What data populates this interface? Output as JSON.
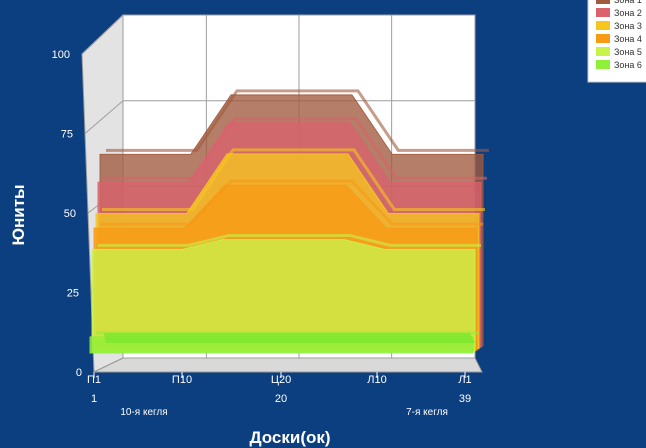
{
  "chart_data": {
    "type": "area",
    "title": "",
    "xlabel": "Доски(ок)",
    "ylabel": "Юниты",
    "ylim": [
      0,
      100
    ],
    "yticks": [
      0,
      25,
      50,
      75,
      100
    ],
    "x_tick_labels": [
      "П1",
      "П10",
      "Ц20",
      "Л10",
      "Л1"
    ],
    "x_numbers": [
      "1",
      "20",
      "39"
    ],
    "x_annotations": [
      "10-я кегля",
      "7-я кегля"
    ],
    "x": [
      1,
      8,
      10,
      14,
      20,
      26,
      30,
      32,
      39
    ],
    "legend_position": "top-right",
    "grid": true,
    "series": [
      {
        "name": "Зона 1",
        "color": "#a05a3e",
        "values": [
          null,
          null,
          null,
          null,
          null,
          null,
          null,
          null,
          null
        ]
      },
      {
        "name": "Зона 2",
        "color": "#d9626d",
        "values": [
          null,
          null,
          null,
          null,
          null,
          null,
          null,
          null,
          null
        ]
      },
      {
        "name": "Зона 3",
        "color": "#f6c61f",
        "values": [
          null,
          null,
          null,
          null,
          null,
          null,
          null,
          null,
          null
        ]
      },
      {
        "name": "Зона 4",
        "color": "#f79a16",
        "values": [
          null,
          null,
          null,
          null,
          null,
          null,
          null,
          null,
          null
        ]
      },
      {
        "name": "Зона 5",
        "color": "#c9f24a",
        "values": [
          null,
          null,
          null,
          null,
          null,
          null,
          null,
          null,
          null
        ]
      },
      {
        "name": "Зона 6",
        "color": "#8ef038",
        "values": [
          null,
          null,
          null,
          null,
          null,
          null,
          null,
          null,
          null
        ]
      }
    ],
    "front_wall_values": {
      "Зона 1": [
        60,
        60,
        60,
        78,
        78,
        78,
        60,
        60,
        60
      ],
      "Зона 2": [
        52,
        52,
        52,
        70,
        70,
        70,
        52,
        52,
        52
      ],
      "Зона 3": [
        43,
        43,
        43,
        61,
        61,
        61,
        43,
        43,
        43
      ],
      "Зона 4": [
        39,
        39,
        39,
        52,
        52,
        52,
        39,
        39,
        39
      ],
      "Зона 5": [
        33,
        33,
        33,
        36,
        36,
        36,
        33,
        33,
        33
      ],
      "Зона 6": [
        7,
        7,
        7,
        7,
        7,
        7,
        7,
        7,
        7
      ]
    }
  }
}
